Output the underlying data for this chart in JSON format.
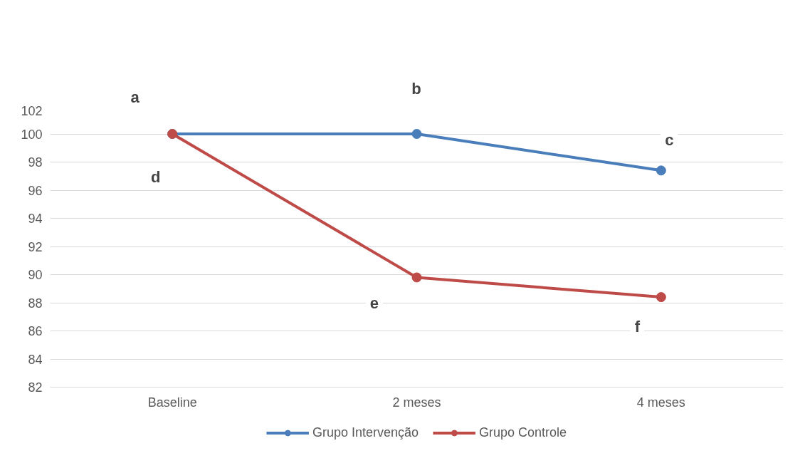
{
  "chart_data": {
    "type": "line",
    "categories": [
      "Baseline",
      "2 meses",
      "4 meses"
    ],
    "series": [
      {
        "name": "Grupo Intervenção",
        "color": "#4a7ebb",
        "values": [
          100,
          100,
          97.4
        ]
      },
      {
        "name": "Grupo Controle",
        "color": "#be4b48",
        "values": [
          100,
          89.8,
          88.4
        ]
      }
    ],
    "ylim": [
      82,
      102
    ],
    "yticks": [
      82,
      84,
      86,
      88,
      90,
      92,
      94,
      96,
      98,
      100,
      102
    ],
    "grid": "y",
    "legend": "bottom",
    "marker": "circle",
    "line_style": "solid",
    "annotations": [
      "a",
      "b",
      "c",
      "d",
      "e",
      "f"
    ]
  }
}
